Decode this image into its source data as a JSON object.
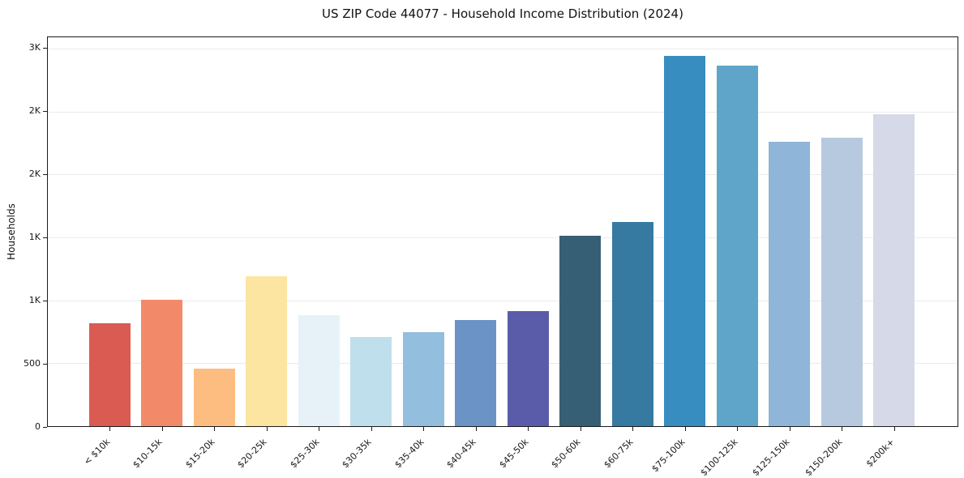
{
  "chart_data": {
    "type": "bar",
    "title": "US ZIP Code 44077 - Household Income Distribution (2024)",
    "xlabel": "",
    "ylabel": "Households",
    "categories": [
      "< $10k",
      "$10-15k",
      "$15-20k",
      "$20-25k",
      "$25-30k",
      "$30-35k",
      "$35-40k",
      "$40-45k",
      "$45-50k",
      "$50-60k",
      "$60-75k",
      "$75-100k",
      "$100-125k",
      "$125-150k",
      "$150-200k",
      "$200k+"
    ],
    "values": [
      815,
      1005,
      455,
      1190,
      885,
      710,
      745,
      845,
      915,
      1515,
      1625,
      2940,
      2865,
      2260,
      2295,
      2480
    ],
    "bar_colors": [
      "#d95b52",
      "#f28a6a",
      "#fdbd80",
      "#fce4a1",
      "#e6f2f8",
      "#bfdfec",
      "#93bedd",
      "#6b93c6",
      "#5a5caa",
      "#365f76",
      "#377aa1",
      "#388dc0",
      "#5fa5c9",
      "#8fb5d8",
      "#b7c9de",
      "#d6d9e8"
    ],
    "yticks": [
      {
        "value": 0,
        "label": "0"
      },
      {
        "value": 500,
        "label": "500"
      },
      {
        "value": 1000,
        "label": "1K"
      },
      {
        "value": 1500,
        "label": "1K"
      },
      {
        "value": 2000,
        "label": "2K"
      },
      {
        "value": 2500,
        "label": "2K"
      },
      {
        "value": 3000,
        "label": "3K"
      }
    ],
    "ylim": [
      0,
      3090
    ],
    "grid": true,
    "grid_color": "#ebebeb",
    "legend": "none"
  }
}
